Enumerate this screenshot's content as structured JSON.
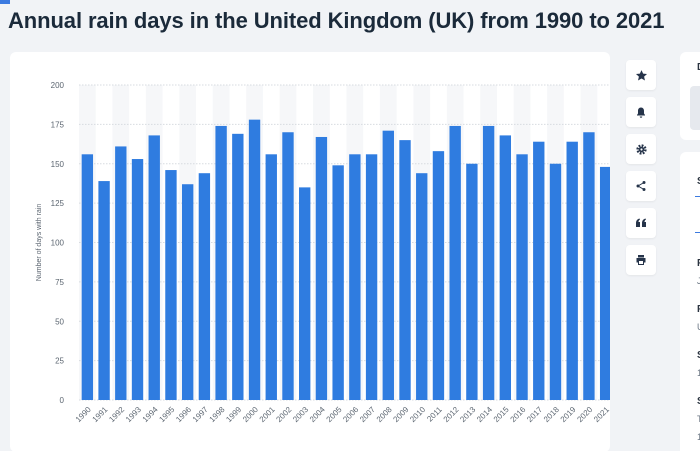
{
  "page": {
    "title": "Annual rain days in the United Kingdom (UK) from 1990 to 2021"
  },
  "chart_data": {
    "type": "bar",
    "title": "Annual rain days in the United Kingdom (UK) from 1990 to 2021",
    "xlabel": "",
    "ylabel": "Number of days with rain",
    "ylim": [
      0,
      200
    ],
    "yticks": [
      0,
      25,
      50,
      75,
      100,
      125,
      150,
      175,
      200
    ],
    "grid": true,
    "categories": [
      "1990",
      "1991",
      "1992",
      "1993",
      "1994",
      "1995",
      "1996",
      "1997",
      "1998",
      "1999",
      "2000",
      "2001",
      "2002",
      "2003",
      "2004",
      "2005",
      "2006",
      "2007",
      "2008",
      "2009",
      "2010",
      "2011",
      "2012",
      "2013",
      "2014",
      "2015",
      "2016",
      "2017",
      "2018",
      "2019",
      "2020",
      "2021"
    ],
    "values": [
      156,
      139,
      161,
      153,
      168,
      146,
      137,
      144,
      174,
      169,
      178,
      156,
      170,
      135,
      167,
      149,
      156,
      156,
      171,
      165,
      144,
      158,
      174,
      150,
      174,
      168,
      156,
      164,
      150,
      164,
      170,
      148
    ],
    "colors": {
      "bar": "#2f7ce0",
      "grid": "#d7dbe0",
      "band": "#f6f7f9",
      "tick": "#5b6570"
    }
  },
  "toolbar": {
    "icons": [
      "star-icon",
      "bell-icon",
      "gear-icon",
      "share-icon",
      "quote-icon",
      "print-icon"
    ]
  },
  "right_panel": {
    "letters": [
      "D",
      "S",
      "F",
      "J",
      "F",
      "U",
      "S",
      "1",
      "S",
      "T",
      "1"
    ]
  }
}
